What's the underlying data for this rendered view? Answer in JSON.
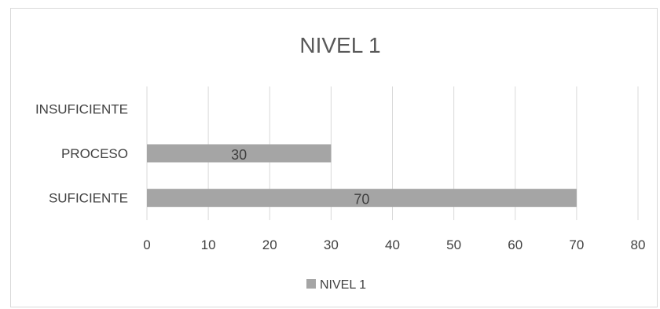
{
  "chart_data": {
    "type": "bar",
    "orientation": "horizontal",
    "title": "NIVEL 1",
    "categories": [
      "INSUFICIENTE",
      "PROCESO",
      "SUFICIENTE"
    ],
    "series": [
      {
        "name": "NIVEL 1",
        "values": [
          null,
          30,
          70
        ]
      }
    ],
    "data_labels": [
      "",
      "30",
      "70"
    ],
    "xlim": [
      0,
      80
    ],
    "xticks": [
      "0",
      "10",
      "20",
      "30",
      "40",
      "50",
      "60",
      "70",
      "80"
    ],
    "grid": true,
    "legend": "bottom",
    "bar_color": "#a5a5a5",
    "grid_color": "#d9d9d9"
  }
}
